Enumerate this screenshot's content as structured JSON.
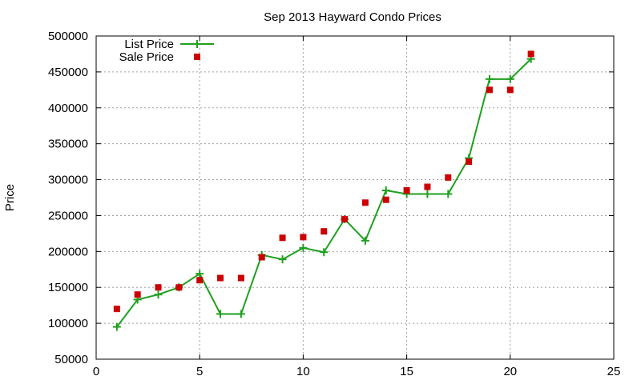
{
  "chart_data": {
    "type": "line",
    "title": "Sep 2013 Hayward Condo Prices",
    "xlabel": "",
    "ylabel": "Price",
    "xlim": [
      0,
      25
    ],
    "ylim": [
      50000,
      500000
    ],
    "x_ticks": [
      0,
      5,
      10,
      15,
      20,
      25
    ],
    "y_ticks": [
      50000,
      100000,
      150000,
      200000,
      250000,
      300000,
      350000,
      400000,
      450000,
      500000
    ],
    "x_tick_labels": [
      "0",
      "5",
      "10",
      "15",
      "20",
      "25"
    ],
    "y_tick_labels": [
      "50000",
      "100000",
      "150000",
      "200000",
      "250000",
      "300000",
      "350000",
      "400000",
      "450000",
      "500000"
    ],
    "grid": true,
    "legend_position": "top-left",
    "series": [
      {
        "name": "List Price",
        "style": "line+crosses",
        "color": "#1fa01f",
        "x": [
          1,
          2,
          3,
          4,
          5,
          6,
          7,
          8,
          9,
          10,
          11,
          12,
          13,
          14,
          15,
          16,
          17,
          18,
          19,
          20,
          21
        ],
        "values": [
          95000,
          133000,
          140000,
          150000,
          169000,
          113000,
          113000,
          195000,
          189000,
          205000,
          199000,
          245000,
          215000,
          285000,
          280000,
          280000,
          280000,
          330000,
          440000,
          440000,
          468000
        ]
      },
      {
        "name": "Sale Price",
        "style": "squares",
        "color": "#cc0000",
        "x": [
          1,
          2,
          3,
          4,
          5,
          6,
          7,
          8,
          9,
          10,
          11,
          12,
          13,
          14,
          15,
          16,
          17,
          18,
          19,
          20,
          21
        ],
        "values": [
          120000,
          140000,
          150000,
          150000,
          160000,
          163000,
          163000,
          192000,
          219000,
          220000,
          228000,
          245000,
          268000,
          272000,
          285000,
          290000,
          303000,
          325000,
          425000,
          425000,
          475000
        ]
      }
    ]
  }
}
